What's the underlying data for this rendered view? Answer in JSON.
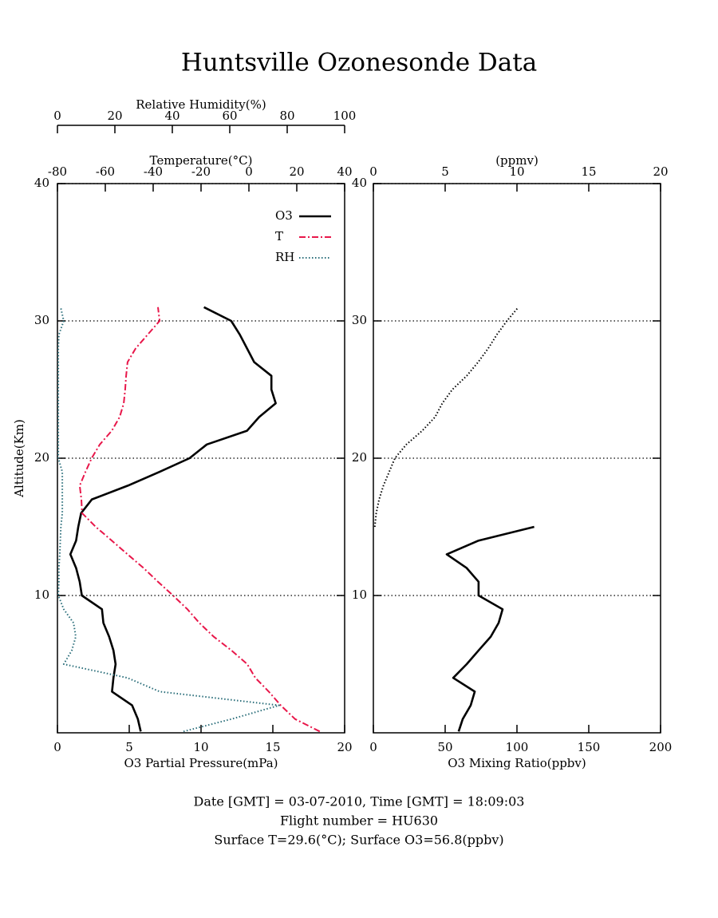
{
  "title": "Huntsville Ozonesonde Data",
  "footer": [
    "Date [GMT] = 03-07-2010,  Time [GMT] = 18:09:03",
    "Flight number = HU630",
    "Surface T=29.6(°C); Surface O3=56.8(ppbv)"
  ],
  "chart_data": [
    {
      "type": "line",
      "ylabel": "Altitude(Km)",
      "y": [
        0.1,
        1,
        2,
        3,
        4,
        5,
        6,
        7,
        8,
        9,
        10,
        11,
        12,
        13,
        14,
        15,
        16,
        17,
        18,
        19,
        20,
        21,
        22,
        23,
        24,
        25,
        26,
        27,
        28,
        29,
        30,
        31
      ],
      "ylim": [
        0,
        40
      ],
      "yticks": [
        10,
        20,
        30,
        40
      ],
      "grid": true,
      "xlabel": "O3 Partial Pressure(mPa)",
      "xlim": [
        0,
        20
      ],
      "xticks": [
        0,
        5,
        10,
        15,
        20
      ],
      "x2label": "Temperature(°C)",
      "x2lim": [
        -80,
        40
      ],
      "x2ticks": [
        -80,
        -60,
        -40,
        -20,
        0,
        20,
        40
      ],
      "x3label": "Relative Humidity(%)",
      "x3lim": [
        0,
        100
      ],
      "x3ticks": [
        0,
        20,
        40,
        60,
        80,
        100
      ],
      "legend": "upper right",
      "series": [
        {
          "name": "O3",
          "color": "#000000",
          "axis": "x",
          "linestyle": "solid",
          "values": [
            5.8,
            5.6,
            5.2,
            3.8,
            3.9,
            4.05,
            3.9,
            3.6,
            3.2,
            3.1,
            1.7,
            1.55,
            1.3,
            0.9,
            1.3,
            1.45,
            1.65,
            2.4,
            4.9,
            7.1,
            9.2,
            10.4,
            13.2,
            14.05,
            15.2,
            14.9,
            14.9,
            13.7,
            13.2,
            12.7,
            12.1,
            10.2
          ]
        },
        {
          "name": "T",
          "color": "#e8174a",
          "axis": "x2",
          "linestyle": "dashdot",
          "values": [
            29.6,
            19.3,
            13.3,
            8.3,
            2.7,
            -0.7,
            -7.3,
            -14.7,
            -20.7,
            -25.7,
            -31.7,
            -38,
            -44,
            -50.7,
            -57.3,
            -64,
            -69.7,
            -70,
            -70.7,
            -68.3,
            -65.7,
            -62.3,
            -57.3,
            -54,
            -52.3,
            -51.7,
            -51.3,
            -50.7,
            -47.3,
            -42.3,
            -37.3,
            -38
          ]
        },
        {
          "name": "RH",
          "color": "#2a6e7a",
          "axis": "x3",
          "linestyle": "dotted",
          "values": [
            43.9,
            60.6,
            77.2,
            35.6,
            24.4,
            2.2,
            5,
            6.4,
            5.6,
            2.2,
            0.3,
            0.5,
            0.5,
            0.8,
            1,
            1.2,
            1.7,
            1.7,
            1.7,
            1.7,
            0.3,
            0.3,
            0.3,
            0.3,
            0.3,
            0.3,
            0.3,
            0.3,
            0.3,
            0.5,
            2.2,
            1.1
          ]
        }
      ]
    },
    {
      "type": "line",
      "y": [
        0.1,
        1,
        2,
        3,
        4,
        5,
        6,
        7,
        8,
        9,
        10,
        11,
        12,
        13,
        14,
        15,
        16,
        17,
        18,
        19,
        20,
        21,
        22,
        23,
        24,
        25,
        26,
        27,
        28,
        29,
        30,
        31
      ],
      "ylim": [
        0,
        40
      ],
      "yticks": [
        10,
        20,
        30,
        40
      ],
      "grid": true,
      "xlabel": "O3 Mixing Ratio(ppbv)",
      "xlim": [
        0,
        200
      ],
      "xticks": [
        0,
        50,
        100,
        150,
        200
      ],
      "x2label": "(ppmv)",
      "x2lim": [
        0,
        20
      ],
      "x2ticks": [
        0,
        5,
        10,
        15,
        20
      ],
      "series": [
        {
          "color": "#000000",
          "axis": "x",
          "linestyle": "solid",
          "values": [
            59.4,
            62.2,
            67.8,
            70.6,
            55.6,
            65,
            73.3,
            81.7,
            87.2,
            90,
            73.3,
            73.3,
            65,
            51.1,
            73.3,
            112,
            null,
            null,
            null,
            null,
            null,
            null,
            null,
            null,
            null,
            null,
            null,
            null,
            null,
            null,
            null,
            null
          ]
        },
        {
          "color": "#000000",
          "axis": "x2",
          "linestyle": "dotted",
          "values": [
            null,
            null,
            null,
            null,
            null,
            null,
            null,
            null,
            null,
            null,
            null,
            null,
            null,
            null,
            null,
            0.1,
            0.2,
            0.4,
            0.7,
            1.1,
            1.5,
            2.3,
            3.4,
            4.3,
            4.8,
            5.5,
            6.5,
            7.3,
            8,
            8.6,
            9.3,
            10.1
          ]
        }
      ]
    }
  ]
}
